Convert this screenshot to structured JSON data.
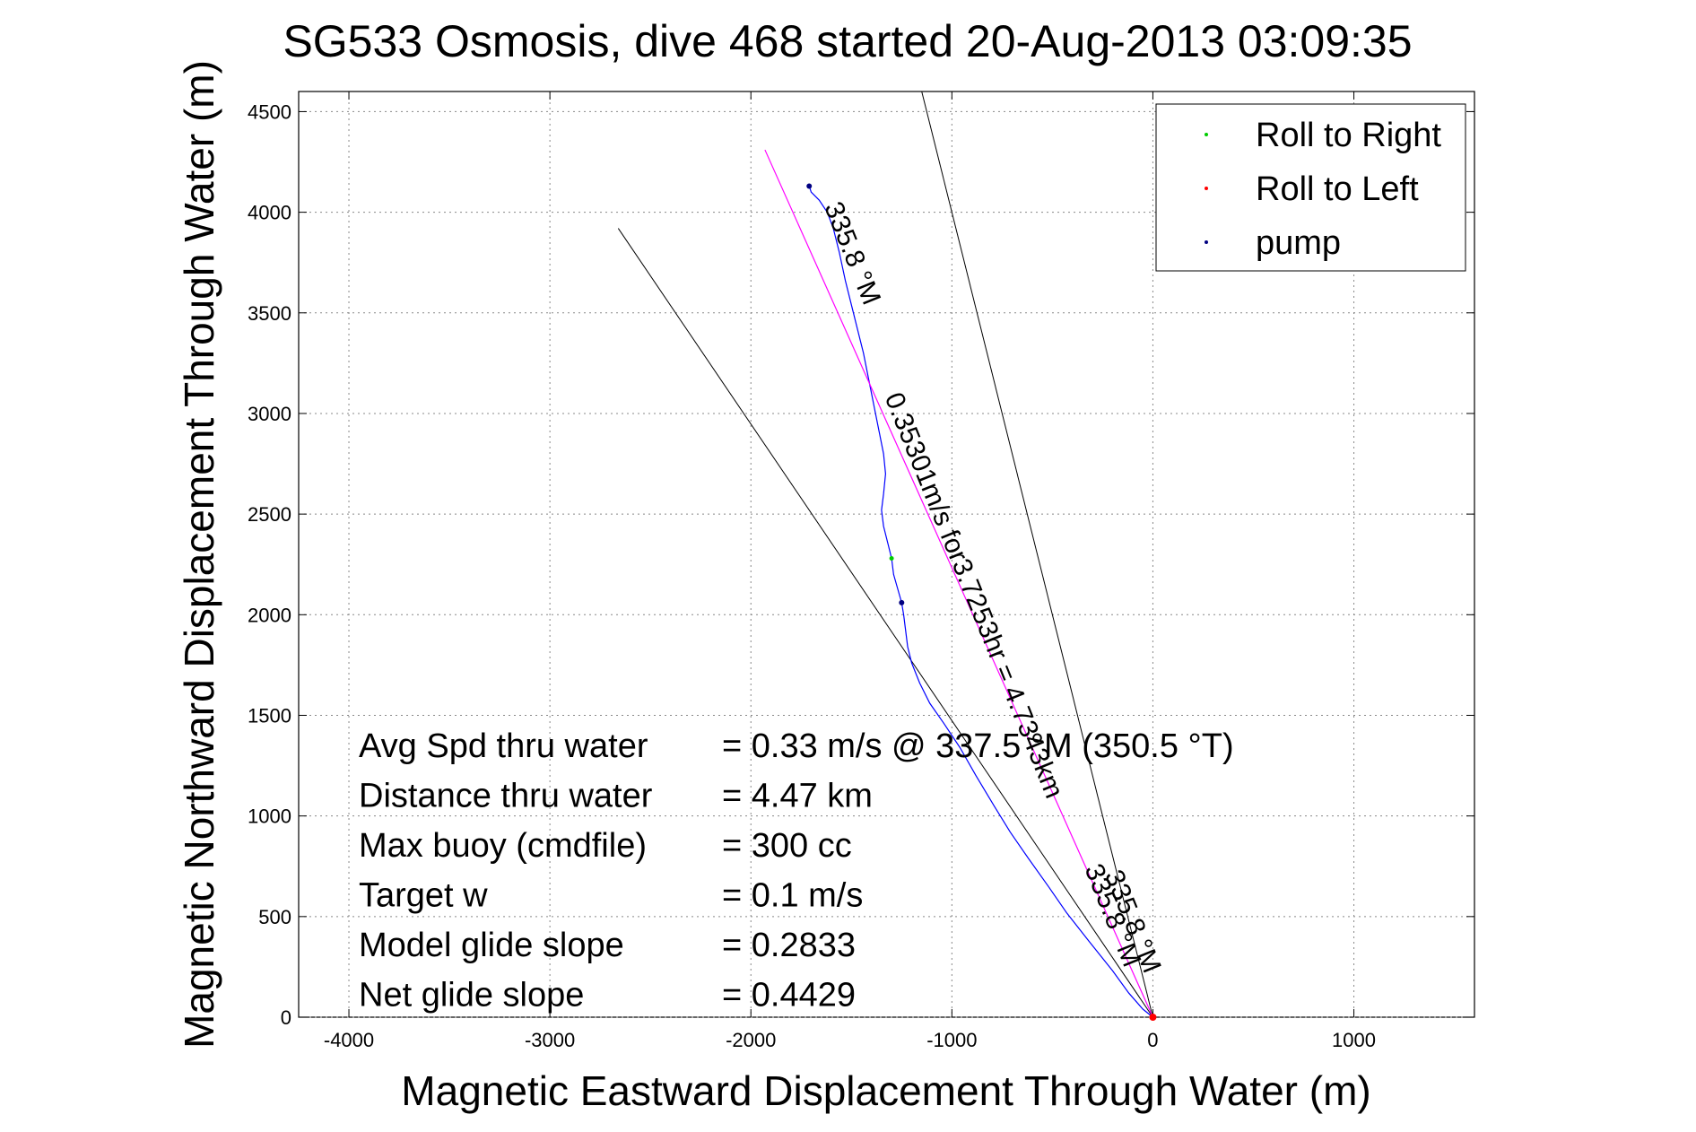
{
  "chart_data": {
    "type": "line",
    "title": "SG533 Osmosis, dive 468 started 20-Aug-2013 03:09:35",
    "xlabel": "Magnetic Eastward Displacement Through Water (m)",
    "ylabel": "Magnetic Northward Displacement Through Water (m)",
    "xlim": [
      -4250,
      1600
    ],
    "ylim": [
      0,
      4600
    ],
    "xticks": [
      -4000,
      -3000,
      -2000,
      -1000,
      0,
      1000
    ],
    "yticks": [
      0,
      500,
      1000,
      1500,
      2000,
      2500,
      3000,
      3500,
      4000,
      4500
    ],
    "grid": true,
    "legend_position": "top-right",
    "legend": [
      {
        "label": "Roll to Right",
        "color": "#00cc00"
      },
      {
        "label": "Roll to Left",
        "color": "#ff0000"
      },
      {
        "label": "pump",
        "color": "#000080"
      }
    ],
    "series": [
      {
        "name": "track",
        "color": "#0000ff",
        "points": [
          [
            0,
            0
          ],
          [
            -50,
            40
          ],
          [
            -120,
            120
          ],
          [
            -200,
            230
          ],
          [
            -320,
            380
          ],
          [
            -430,
            520
          ],
          [
            -520,
            650
          ],
          [
            -620,
            790
          ],
          [
            -710,
            920
          ],
          [
            -790,
            1050
          ],
          [
            -880,
            1200
          ],
          [
            -960,
            1340
          ],
          [
            -1040,
            1460
          ],
          [
            -1110,
            1560
          ],
          [
            -1160,
            1660
          ],
          [
            -1200,
            1760
          ],
          [
            -1220,
            1840
          ],
          [
            -1230,
            1920
          ],
          [
            -1240,
            2000
          ],
          [
            -1250,
            2060
          ],
          [
            -1270,
            2130
          ],
          [
            -1290,
            2200
          ],
          [
            -1300,
            2280
          ],
          [
            -1320,
            2360
          ],
          [
            -1340,
            2440
          ],
          [
            -1350,
            2520
          ],
          [
            -1340,
            2600
          ],
          [
            -1330,
            2700
          ],
          [
            -1340,
            2800
          ],
          [
            -1360,
            2900
          ],
          [
            -1380,
            3000
          ],
          [
            -1400,
            3100
          ],
          [
            -1420,
            3200
          ],
          [
            -1440,
            3300
          ],
          [
            -1470,
            3420
          ],
          [
            -1500,
            3540
          ],
          [
            -1530,
            3660
          ],
          [
            -1560,
            3800
          ],
          [
            -1590,
            3920
          ],
          [
            -1620,
            4000
          ],
          [
            -1660,
            4060
          ],
          [
            -1700,
            4100
          ],
          [
            -1710,
            4130
          ]
        ]
      },
      {
        "name": "heading",
        "color": "#ff00ff",
        "points": [
          [
            0,
            0
          ],
          [
            -1930,
            4310
          ]
        ]
      }
    ],
    "guide_lines": [
      {
        "color": "#000000",
        "points": [
          [
            0,
            0
          ],
          [
            -2660,
            3920
          ]
        ]
      },
      {
        "color": "#000000",
        "points": [
          [
            0,
            0
          ],
          [
            -1150,
            4600
          ]
        ]
      }
    ],
    "annotations": [
      {
        "text": "335.8 °M",
        "x": -1535,
        "y": 3780,
        "rotation": 68
      },
      {
        "text": "0.35301m/s for3.7253hr = 4.7343km",
        "x": -930,
        "y": 2080,
        "rotation": 68
      },
      {
        "text": "335.8 °M",
        "x": -240,
        "y": 490,
        "rotation": 68
      },
      {
        "text": "335.8 °M",
        "x": -140,
        "y": 460,
        "rotation": 68
      }
    ],
    "stats": [
      {
        "label": "Avg Spd thru water",
        "value": "=  0.33 m/s @ 337.5 °M (350.5 °T)"
      },
      {
        "label": "Distance thru water",
        "value": "=  4.47 km"
      },
      {
        "label": "Max buoy (cmdfile)",
        "value": "= 300 cc"
      },
      {
        "label": "Target w",
        "value": "= 0.1 m/s"
      },
      {
        "label": "Model glide slope",
        "value": "= 0.2833"
      },
      {
        "label": "Net glide slope",
        "value": "= 0.4429"
      }
    ]
  }
}
